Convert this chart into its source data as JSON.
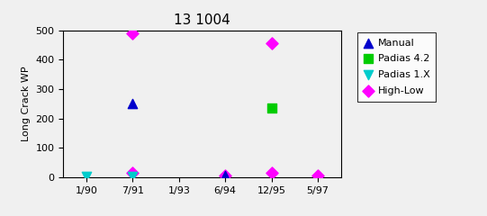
{
  "title": "13 1004",
  "ylabel": "Long Crack WP",
  "x_labels": [
    "1/90",
    "7/91",
    "1/93",
    "6/94",
    "12/95",
    "5/97"
  ],
  "x_positions": [
    0,
    1,
    2,
    3,
    4,
    5
  ],
  "ylim": [
    0,
    500
  ],
  "yticks": [
    0,
    100,
    200,
    300,
    400,
    500
  ],
  "manual": {
    "x": [
      1,
      3
    ],
    "y": [
      250,
      5
    ]
  },
  "padias42": {
    "x": [
      4
    ],
    "y": [
      235
    ]
  },
  "padias1x": {
    "x": [
      0,
      1
    ],
    "y": [
      2,
      3
    ]
  },
  "highlow": {
    "x": [
      1,
      1,
      3,
      4,
      4,
      5
    ],
    "y": [
      490,
      15,
      5,
      455,
      15,
      5
    ]
  },
  "colors": {
    "manual": "#0000cc",
    "padias42": "#00cc00",
    "padias1x": "#00cccc",
    "highlow": "#ff00ff"
  },
  "bg_color": "#f0f0f0",
  "plot_bg": "#f0f0f0",
  "title_fontsize": 11,
  "axis_fontsize": 8,
  "legend_fontsize": 8
}
